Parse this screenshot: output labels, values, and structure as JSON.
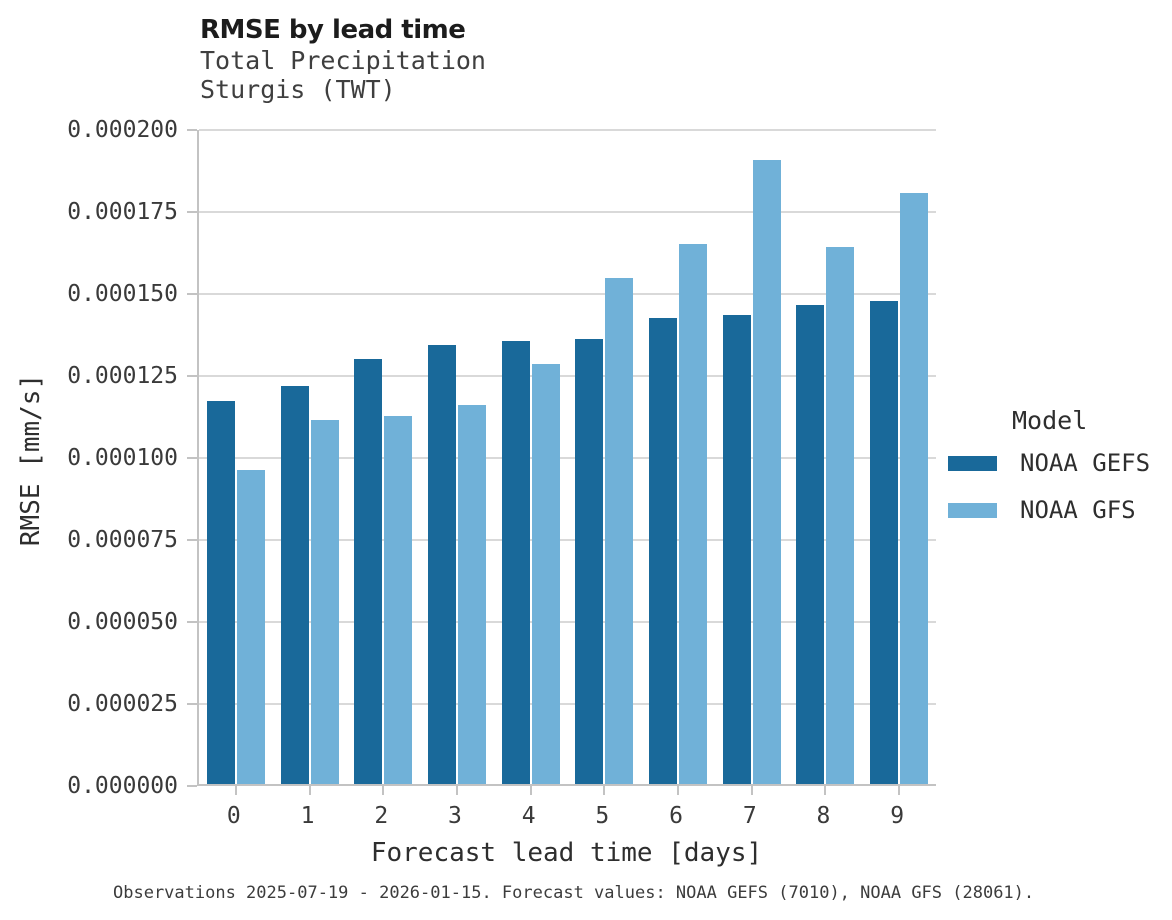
{
  "chart_data": {
    "type": "bar",
    "title": "RMSE by lead time",
    "subtitle": [
      "Total Precipitation",
      "Sturgis (TWT)"
    ],
    "xlabel": "Forecast lead time [days]",
    "ylabel": "RMSE [mm/s]",
    "categories": [
      "0",
      "1",
      "2",
      "3",
      "4",
      "5",
      "6",
      "7",
      "8",
      "9"
    ],
    "series": [
      {
        "name": "NOAA GEFS",
        "color": "#19699a",
        "values": [
          0.0001167,
          0.0001212,
          0.0001296,
          0.0001338,
          0.0001352,
          0.0001358,
          0.0001421,
          0.0001429,
          0.0001459,
          0.0001474
        ]
      },
      {
        "name": "NOAA GFS",
        "color": "#70b1d8",
        "values": [
          9.56e-05,
          0.0001109,
          0.0001122,
          0.0001155,
          0.0001281,
          0.0001544,
          0.0001647,
          0.0001901,
          0.0001636,
          0.0001802
        ]
      }
    ],
    "ylim": [
      0,
      0.0002
    ],
    "ytick_labels": [
      "0.000000",
      "0.000025",
      "0.000050",
      "0.000075",
      "0.000100",
      "0.000125",
      "0.000150",
      "0.000175",
      "0.000200"
    ],
    "grid": true,
    "legend": {
      "title": "Model",
      "position": "right"
    },
    "footnote": "Observations 2025-07-19 - 2026-01-15. Forecast values: NOAA GEFS (7010), NOAA GFS (28061)."
  }
}
